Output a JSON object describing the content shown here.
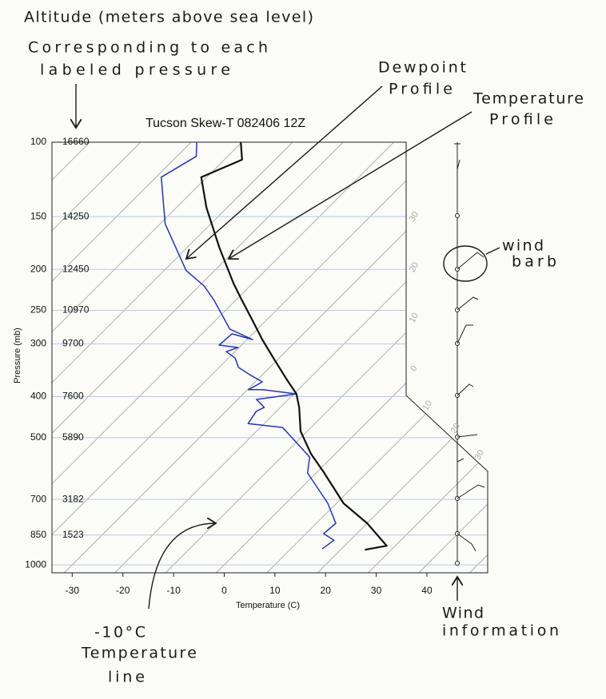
{
  "chart_data": {
    "type": "skewt",
    "title": "Tucson Skew-T 082406 12Z",
    "x_label": "Temperature (C)",
    "y_label": "Pressure (mb)",
    "xlim": [
      -34,
      52
    ],
    "xticks": [
      -30,
      -20,
      -10,
      0,
      10,
      20,
      30,
      40
    ],
    "ylim": [
      1044,
      100
    ],
    "yticks": [
      100,
      150,
      200,
      250,
      300,
      400,
      500,
      700,
      850,
      1000
    ],
    "altitudes": [
      16660,
      14250,
      12450,
      10970,
      9700,
      7600,
      5890,
      3182,
      1523
    ],
    "log_scale": true,
    "grid": true,
    "isotherms": [
      -110,
      -100,
      -90,
      -80,
      -70,
      -60,
      -50,
      -40,
      -30,
      -20,
      -10,
      0,
      10,
      20,
      30,
      40,
      50
    ],
    "isotherm_labels": [
      {
        "value": -30,
        "label": "30"
      },
      {
        "value": -20,
        "label": "20"
      },
      {
        "value": -10,
        "label": "10"
      },
      {
        "value": 0,
        "label": "0"
      },
      {
        "value": 10,
        "label": "10"
      },
      {
        "value": 20,
        "label": "20"
      },
      {
        "value": 30,
        "label": "30"
      }
    ],
    "series": [
      {
        "color": "#2536b0",
        "pressure": [
          917,
          874,
          844,
          797,
          715,
          606,
          556,
          473,
          463,
          433,
          424,
          406,
          394,
          385,
          385,
          369,
          356,
          341,
          324,
          313,
          306,
          302,
          284,
          293,
          277,
          236,
          219,
          201,
          156,
          121,
          108,
          100
        ],
        "temperature": [
          16.2,
          16.8,
          13.5,
          13.8,
          8.3,
          -1.7,
          -4.4,
          -15.6,
          -23.2,
          -24.0,
          -23.2,
          -26.3,
          -19.5,
          -27.0,
          -29.8,
          -28.6,
          -32.2,
          -36.2,
          -38.7,
          -41.7,
          -40.2,
          -44.4,
          -44.1,
          -38.9,
          -45.4,
          -54.4,
          -59.0,
          -65.7,
          -79.0,
          -89.0,
          -86.2,
          -88.9
        ]
      },
      {
        "color": "#111111",
        "pressure": [
          921,
          901,
          797,
          715,
          601,
          546,
          483,
          424,
          394,
          364,
          327,
          293,
          263,
          236,
          216,
          198,
          178,
          143,
          121,
          110,
          100
        ],
        "temperature": [
          24.8,
          28.3,
          20.0,
          11.4,
          1.1,
          -4.8,
          -11.3,
          -16.3,
          -19.5,
          -24.3,
          -30.6,
          -37.0,
          -42.9,
          -48.9,
          -53.7,
          -58.1,
          -63.5,
          -74.0,
          -81.1,
          -76.5,
          -80.2
        ]
      }
    ],
    "annotations": {
      "altitude": [
        "Altitude (meters above sea level)",
        "Corresponding to each",
        "labeled pressure"
      ],
      "dewpoint": [
        "Dewpoint",
        "Profile"
      ],
      "temperature": [
        "Temperature",
        "Profile"
      ],
      "wind_barb": [
        "wind",
        "barb"
      ],
      "isotherm": [
        "-10°C",
        "Temperature",
        "line"
      ],
      "wind": [
        "Wind",
        "information"
      ]
    }
  }
}
